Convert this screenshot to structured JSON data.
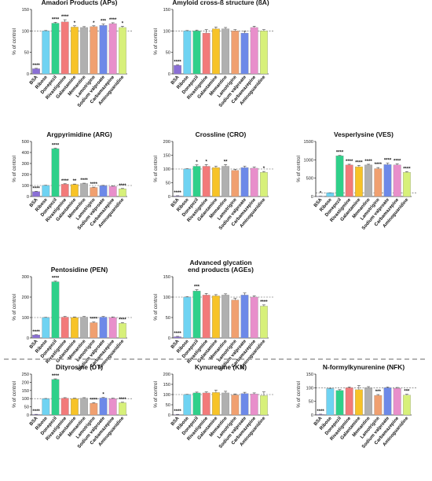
{
  "colors": [
    "#8a6fd6",
    "#6fd3f2",
    "#2fd08a",
    "#f27a7a",
    "#f7c327",
    "#b0b0b0",
    "#f0a070",
    "#6d89e8",
    "#e88fcb",
    "#d7f07a"
  ],
  "categories": [
    "BSA",
    "Ribose",
    "Donepezil",
    "Rivastigmine",
    "Galantamine",
    "Memantine",
    "Lamotrigine",
    "Sodium valproate",
    "Carbamazepine",
    "Aminoguanidine"
  ],
  "ylabel": "% of control",
  "chart_data": [
    {
      "id": "ap",
      "type": "bar",
      "title": "Amadori Products (APs)",
      "ylabel": "% of control",
      "ylim": [
        0,
        150
      ],
      "yticks": [
        0,
        50,
        100,
        150
      ],
      "values": [
        12,
        100,
        118,
        121,
        109,
        108,
        110,
        113,
        117,
        108
      ],
      "errors": [
        1,
        1,
        2,
        5,
        3,
        2,
        2,
        3,
        2,
        3
      ],
      "sig": [
        "****",
        "",
        "****",
        "****",
        "*",
        "",
        "*",
        "***",
        "****",
        "*"
      ]
    },
    {
      "id": "ba",
      "type": "bar",
      "title": "Amyloid cross-ß structure (ßA)",
      "ylabel": "% of control",
      "ylim": [
        0,
        150
      ],
      "yticks": [
        0,
        50,
        100,
        150
      ],
      "values": [
        20,
        100,
        100,
        95,
        105,
        105,
        100,
        95,
        108,
        100
      ],
      "errors": [
        1,
        1,
        2,
        8,
        4,
        3,
        3,
        4,
        3,
        3
      ],
      "sig": [
        "****",
        "",
        "",
        "",
        "",
        "",
        "",
        "",
        "",
        ""
      ]
    },
    {
      "id": "arg",
      "type": "bar",
      "title": "Argpyrimidine (ARG)",
      "ylabel": "% of control",
      "ylim": [
        0,
        500
      ],
      "yticks": [
        0,
        100,
        200,
        300,
        400,
        500
      ],
      "values": [
        45,
        100,
        435,
        112,
        110,
        118,
        82,
        98,
        92,
        70
      ],
      "errors": [
        2,
        2,
        4,
        4,
        3,
        3,
        3,
        3,
        3,
        3
      ],
      "sig": [
        "****",
        "",
        "****",
        "****",
        "**",
        "****",
        "****",
        "",
        "",
        "****"
      ]
    },
    {
      "id": "cro",
      "type": "bar",
      "title": "Crossline (CRO)",
      "ylabel": "% of control",
      "ylim": [
        0,
        200
      ],
      "yticks": [
        0,
        50,
        100,
        150,
        200
      ],
      "values": [
        2,
        100,
        110,
        110,
        105,
        110,
        95,
        105,
        103,
        88
      ],
      "errors": [
        1,
        1,
        5,
        6,
        5,
        6,
        4,
        5,
        4,
        3
      ],
      "sig": [
        "****",
        "",
        "*",
        "*",
        "",
        "**",
        "",
        "",
        "",
        "*"
      ]
    },
    {
      "id": "ves",
      "type": "bar",
      "title": "Vesperlysine (VES)",
      "ylabel": "% of control",
      "ylim": [
        0,
        1500
      ],
      "yticks": [
        0,
        500,
        1000,
        1500
      ],
      "values": [
        5,
        100,
        1110,
        860,
        810,
        860,
        760,
        870,
        860,
        660
      ],
      "errors": [
        2,
        3,
        10,
        20,
        40,
        20,
        30,
        40,
        30,
        20
      ],
      "sig": [
        "*",
        "",
        "****",
        "****",
        "****",
        "****",
        "****",
        "****",
        "****",
        "****"
      ]
    },
    {
      "id": "pen",
      "type": "bar",
      "title": "Pentosidine (PEN)",
      "ylabel": "% of control",
      "ylim": [
        0,
        300
      ],
      "yticks": [
        0,
        100,
        200,
        300
      ],
      "values": [
        15,
        100,
        275,
        102,
        100,
        102,
        75,
        102,
        100,
        72
      ],
      "errors": [
        1,
        1,
        3,
        3,
        3,
        3,
        3,
        3,
        3,
        3
      ],
      "sig": [
        "****",
        "",
        "****",
        "",
        "",
        "",
        "****",
        "",
        "",
        "****"
      ]
    },
    {
      "id": "age",
      "type": "bar",
      "title": "Advanced glycation\nend products (AGEs)",
      "ylabel": "% of control",
      "ylim": [
        0,
        150
      ],
      "yticks": [
        0,
        50,
        100,
        150
      ],
      "values": [
        3,
        100,
        115,
        105,
        103,
        105,
        93,
        105,
        100,
        78
      ],
      "errors": [
        1,
        1,
        3,
        4,
        3,
        3,
        4,
        5,
        3,
        3
      ],
      "sig": [
        "****",
        "",
        "***",
        "",
        "",
        "",
        "",
        "",
        "",
        "****"
      ]
    },
    {
      "id": "dt",
      "type": "bar",
      "title": "Dityrosine (DT)",
      "ylabel": "% of control",
      "ylim": [
        0,
        250
      ],
      "yticks": [
        0,
        50,
        100,
        150,
        200,
        250
      ],
      "values": [
        3,
        100,
        218,
        103,
        100,
        103,
        72,
        104,
        100,
        75
      ],
      "errors": [
        1,
        1,
        3,
        3,
        3,
        3,
        3,
        3,
        3,
        3
      ],
      "sig": [
        "****",
        "",
        "****",
        "",
        "",
        "",
        "****",
        "*",
        "",
        "****"
      ]
    },
    {
      "id": "kn",
      "type": "bar",
      "title": "Kynurenine (KN)",
      "ylabel": "% of control",
      "ylim": [
        0,
        200
      ],
      "yticks": [
        0,
        50,
        100,
        150,
        200
      ],
      "values": [
        2,
        100,
        108,
        108,
        110,
        108,
        98,
        105,
        103,
        95
      ],
      "errors": [
        1,
        1,
        4,
        5,
        12,
        8,
        5,
        6,
        5,
        18
      ],
      "sig": [
        "****",
        "",
        "",
        "",
        "",
        "",
        "",
        "",
        "",
        ""
      ]
    },
    {
      "id": "nfk",
      "type": "bar",
      "title": "N-formylkynurenine (NFK)",
      "ylabel": "% of control",
      "ylim": [
        0,
        150
      ],
      "yticks": [
        0,
        50,
        100,
        150
      ],
      "values": [
        2,
        97,
        90,
        100,
        93,
        100,
        72,
        100,
        98,
        73
      ],
      "errors": [
        1,
        1,
        3,
        3,
        15,
        4,
        3,
        3,
        3,
        3
      ],
      "sig": [
        "****",
        "",
        "",
        "",
        "",
        "",
        "***",
        "",
        "",
        "***"
      ]
    }
  ]
}
